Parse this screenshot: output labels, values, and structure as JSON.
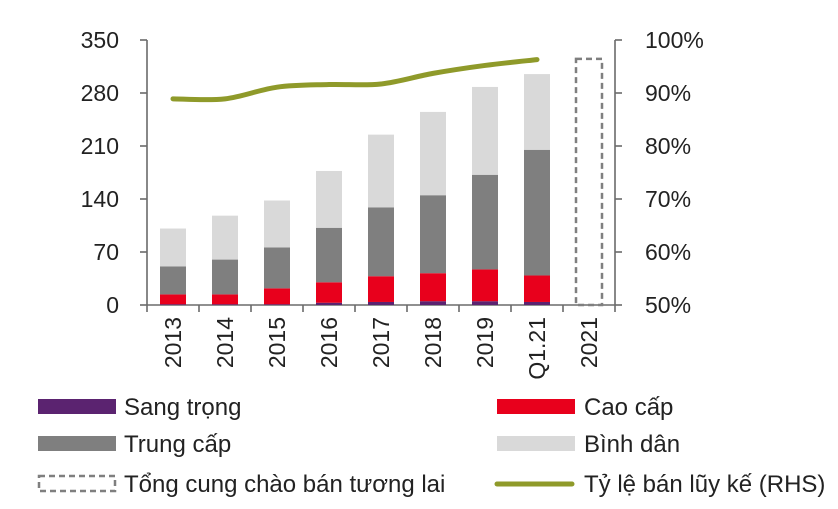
{
  "chart_data": {
    "type": "bar",
    "stacked": true,
    "categories": [
      "2013",
      "2014",
      "2015",
      "2016",
      "2017",
      "2018",
      "2019",
      "Q1.21",
      "2021"
    ],
    "series": [
      {
        "name": "Sang trọng",
        "color": "#5b2370",
        "values": [
          1,
          1,
          1,
          3,
          4,
          5,
          5,
          4,
          null
        ]
      },
      {
        "name": "Cao cấp",
        "color": "#e8001c",
        "values": [
          13,
          13,
          21,
          27,
          34,
          37,
          42,
          35,
          null
        ]
      },
      {
        "name": "Trung cấp",
        "color": "#7f7f7f",
        "values": [
          37,
          46,
          54,
          72,
          91,
          103,
          125,
          166,
          null
        ]
      },
      {
        "name": "Bình dân",
        "color": "#d9d9d9",
        "values": [
          50,
          58,
          62,
          75,
          96,
          110,
          116,
          100,
          null
        ]
      },
      {
        "name": "Tổng cung chào bán tương lai",
        "color": "#7f7f7f",
        "style": "dashed",
        "values": [
          null,
          null,
          null,
          null,
          null,
          null,
          null,
          null,
          325
        ]
      }
    ],
    "line_series": {
      "name": "Tỷ lệ bán lũy kế (RHS)",
      "axis": "right",
      "color": "#8f9a2a",
      "values": [
        88.9,
        88.9,
        91.1,
        91.6,
        91.7,
        93.7,
        95.2,
        96.3,
        null
      ]
    },
    "left_axis": {
      "ylim": [
        0,
        350
      ],
      "ticks": [
        "0",
        "70",
        "140",
        "210",
        "280",
        "350"
      ]
    },
    "right_axis": {
      "ylim": [
        50,
        100
      ],
      "ticks": [
        "50%",
        "60%",
        "70%",
        "80%",
        "90%",
        "100%"
      ]
    },
    "legend": {
      "placement": "bottom",
      "items": [
        {
          "label": "Sang trọng",
          "swatch": "bar",
          "color": "#5b2370"
        },
        {
          "label": "Cao cấp",
          "swatch": "bar",
          "color": "#e8001c"
        },
        {
          "label": "Trung cấp",
          "swatch": "bar",
          "color": "#7f7f7f"
        },
        {
          "label": "Bình dân",
          "swatch": "bar",
          "color": "#d9d9d9"
        },
        {
          "label": "Tổng cung chào bán tương lai",
          "swatch": "dashed-box",
          "color": "#7f7f7f"
        },
        {
          "label": "Tỷ lệ bán lũy kế (RHS)",
          "swatch": "line",
          "color": "#8f9a2a"
        }
      ]
    },
    "grid": false
  }
}
